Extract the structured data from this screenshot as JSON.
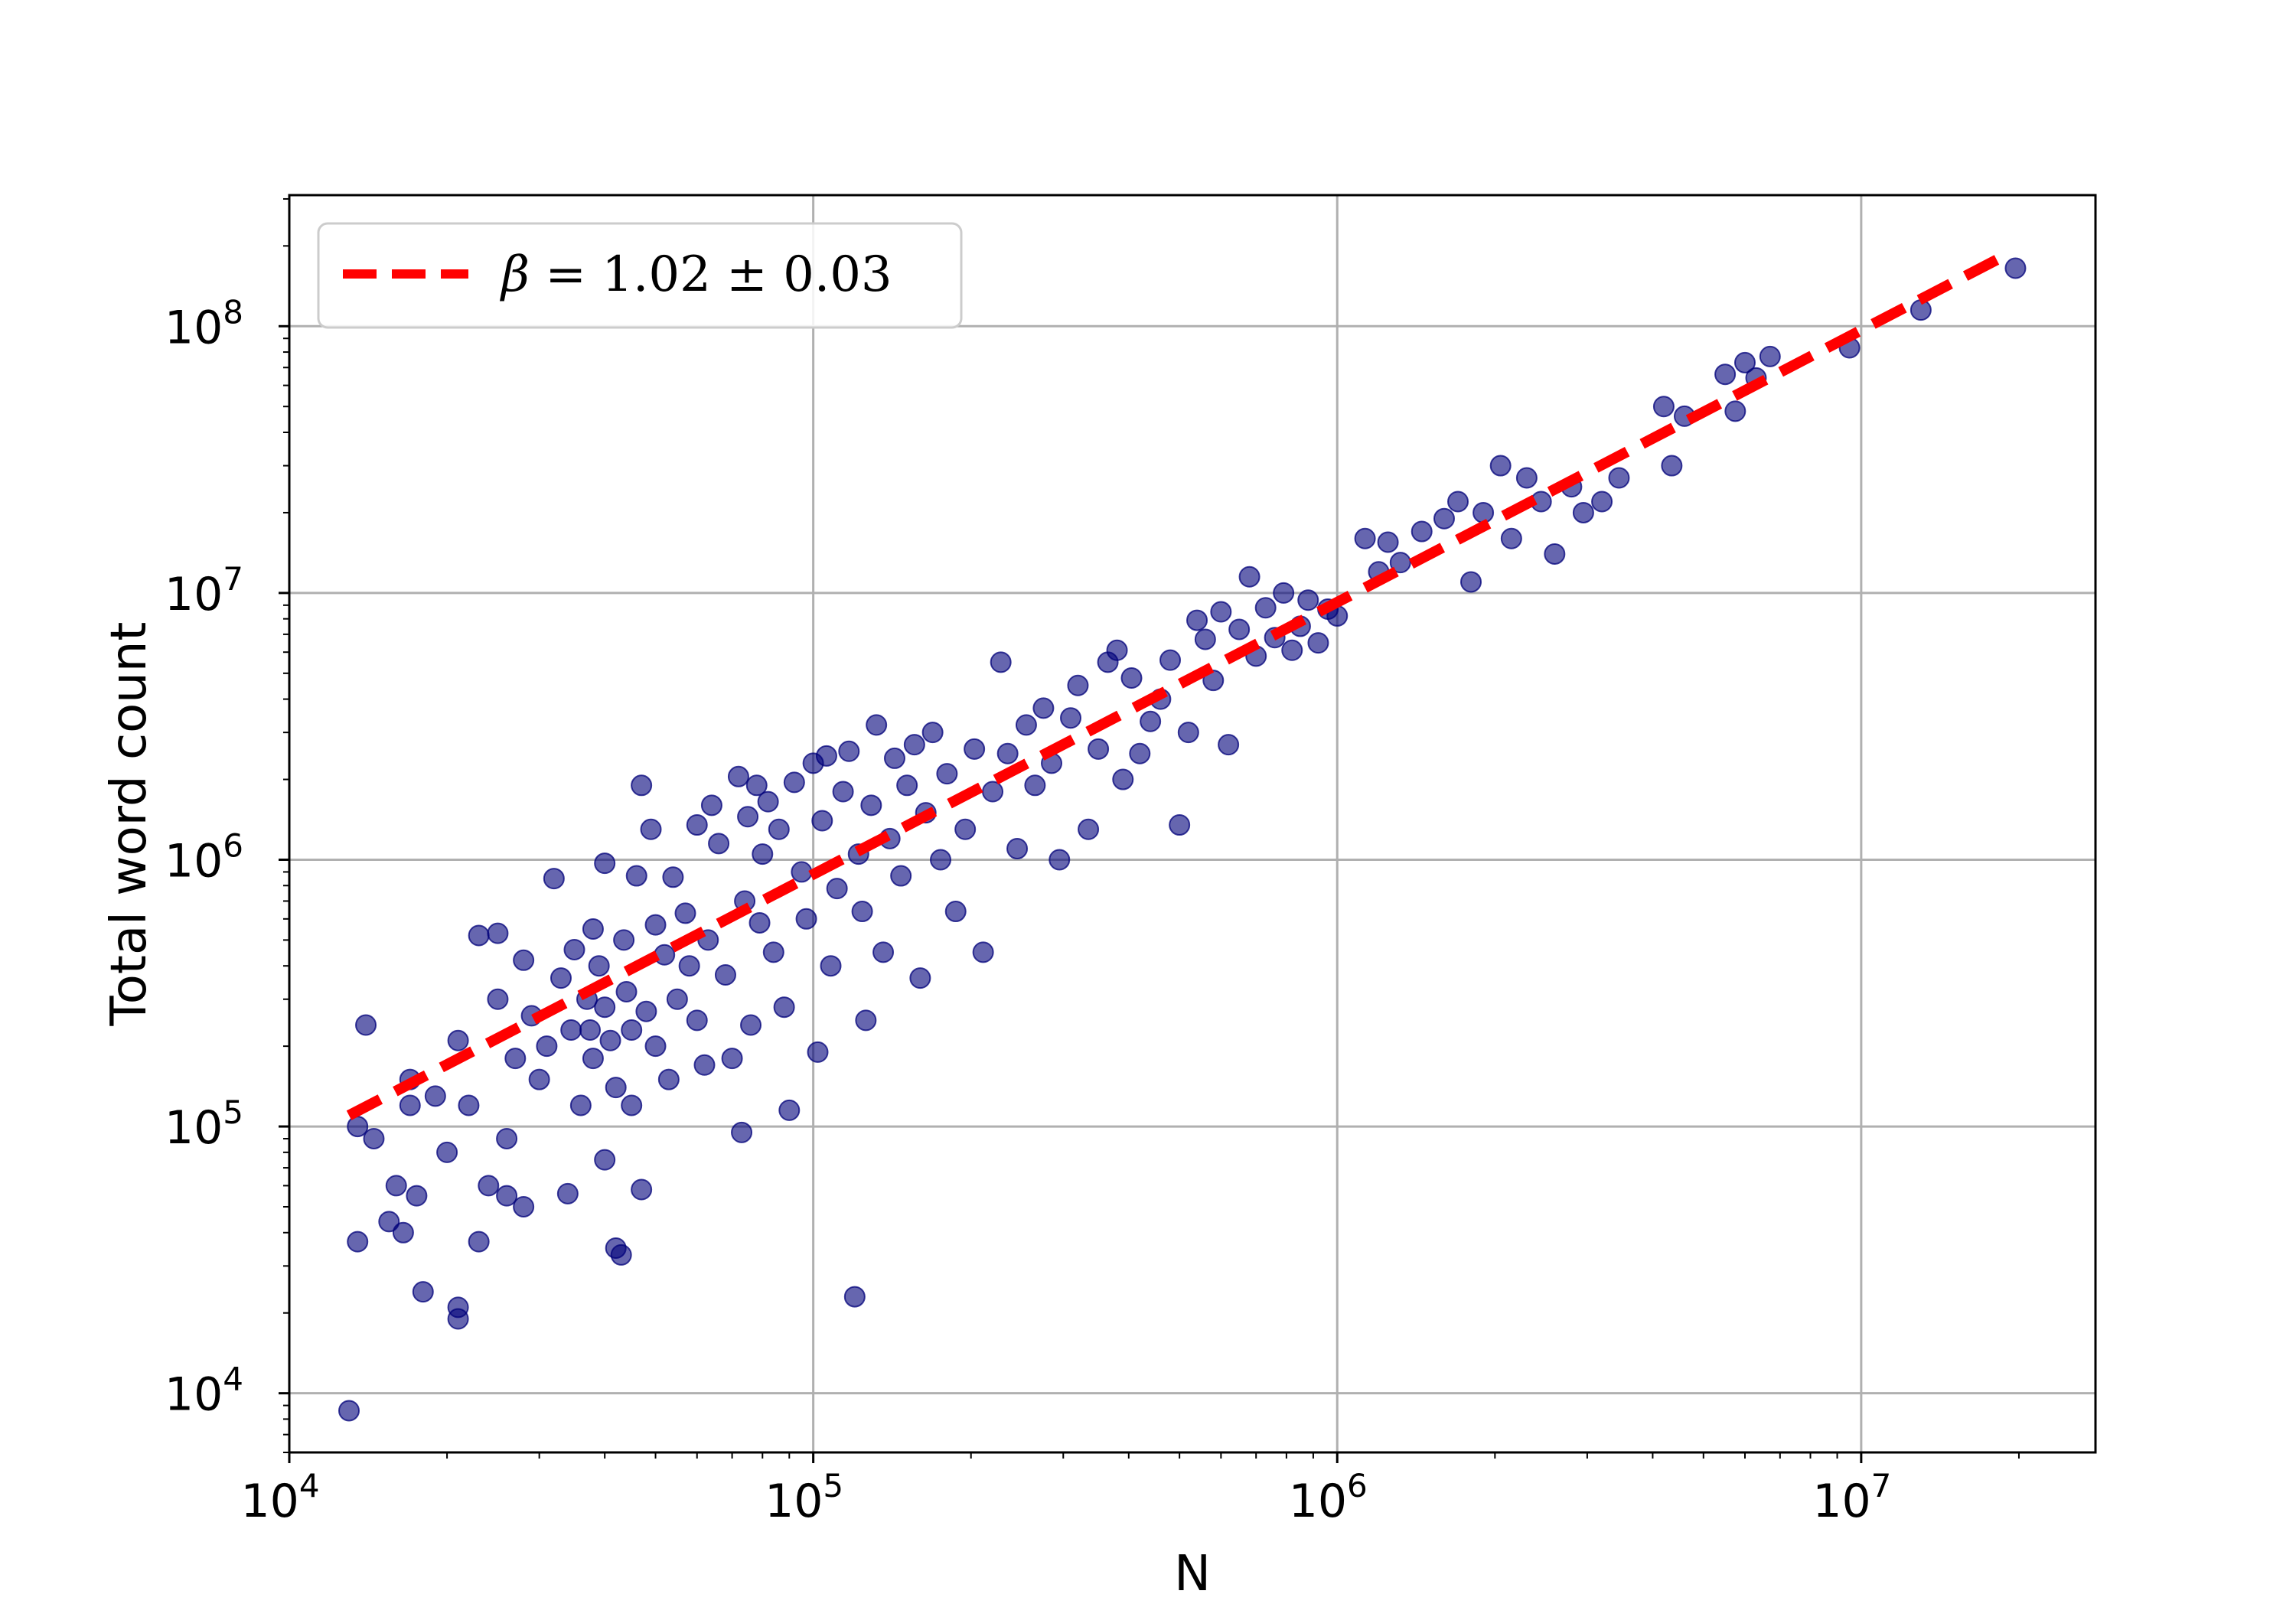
{
  "chart_data": {
    "type": "scatter",
    "title": "",
    "xlabel": "N",
    "ylabel": "Total word count",
    "x_scale": "log",
    "y_scale": "log",
    "xlim": [
      10000,
      28000000
    ],
    "ylim": [
      6000,
      310000000
    ],
    "grid": true,
    "legend_position": "top-left",
    "x_ticks": [
      {
        "base": "10",
        "exp": "4"
      },
      {
        "base": "10",
        "exp": "5"
      },
      {
        "base": "10",
        "exp": "6"
      },
      {
        "base": "10",
        "exp": "7"
      }
    ],
    "y_ticks": [
      {
        "base": "10",
        "exp": "4"
      },
      {
        "base": "10",
        "exp": "5"
      },
      {
        "base": "10",
        "exp": "6"
      },
      {
        "base": "10",
        "exp": "7"
      },
      {
        "base": "10",
        "exp": "8"
      }
    ],
    "fit": {
      "legend_symbol": "β",
      "legend_value": " = 1.02 ± 0.03",
      "beta": 1.02,
      "x_range": [
        13000,
        19000000
      ],
      "anchor": [
        13000,
        110000
      ],
      "color": "#ff0000",
      "style": "dashed"
    },
    "scatter_color": "#00007a",
    "points": [
      [
        13000,
        8600
      ],
      [
        13500,
        37000
      ],
      [
        13500,
        100000
      ],
      [
        14000,
        240000
      ],
      [
        14500,
        90000
      ],
      [
        15500,
        44000
      ],
      [
        16000,
        60000
      ],
      [
        16500,
        40000
      ],
      [
        17000,
        150000
      ],
      [
        17000,
        120000
      ],
      [
        17500,
        55000
      ],
      [
        18000,
        24000
      ],
      [
        19000,
        130000
      ],
      [
        20000,
        80000
      ],
      [
        21000,
        19000
      ],
      [
        21000,
        21000
      ],
      [
        21000,
        210000
      ],
      [
        22000,
        120000
      ],
      [
        23000,
        37000
      ],
      [
        23000,
        520000
      ],
      [
        24000,
        60000
      ],
      [
        25000,
        300000
      ],
      [
        25000,
        530000
      ],
      [
        26000,
        55000
      ],
      [
        26000,
        90000
      ],
      [
        27000,
        180000
      ],
      [
        28000,
        420000
      ],
      [
        28000,
        50000
      ],
      [
        29000,
        260000
      ],
      [
        30000,
        150000
      ],
      [
        31000,
        200000
      ],
      [
        32000,
        850000
      ],
      [
        33000,
        360000
      ],
      [
        34000,
        56000
      ],
      [
        34500,
        230000
      ],
      [
        35000,
        460000
      ],
      [
        36000,
        120000
      ],
      [
        37000,
        300000
      ],
      [
        37500,
        230000
      ],
      [
        38000,
        180000
      ],
      [
        38000,
        550000
      ],
      [
        39000,
        400000
      ],
      [
        40000,
        75000
      ],
      [
        40000,
        970000
      ],
      [
        40000,
        280000
      ],
      [
        41000,
        210000
      ],
      [
        42000,
        140000
      ],
      [
        42000,
        35000
      ],
      [
        43000,
        33000
      ],
      [
        43500,
        500000
      ],
      [
        44000,
        320000
      ],
      [
        45000,
        230000
      ],
      [
        45000,
        120000
      ],
      [
        46000,
        870000
      ],
      [
        47000,
        1900000
      ],
      [
        47000,
        58000
      ],
      [
        48000,
        270000
      ],
      [
        49000,
        1300000
      ],
      [
        50000,
        200000
      ],
      [
        50000,
        570000
      ],
      [
        52000,
        440000
      ],
      [
        53000,
        150000
      ],
      [
        54000,
        860000
      ],
      [
        55000,
        300000
      ],
      [
        57000,
        630000
      ],
      [
        58000,
        400000
      ],
      [
        60000,
        1350000
      ],
      [
        60000,
        250000
      ],
      [
        62000,
        170000
      ],
      [
        63000,
        500000
      ],
      [
        64000,
        1600000
      ],
      [
        66000,
        1150000
      ],
      [
        68000,
        370000
      ],
      [
        70000,
        180000
      ],
      [
        72000,
        2050000
      ],
      [
        73000,
        95000
      ],
      [
        74000,
        700000
      ],
      [
        75000,
        1450000
      ],
      [
        76000,
        240000
      ],
      [
        78000,
        1900000
      ],
      [
        79000,
        580000
      ],
      [
        80000,
        1050000
      ],
      [
        82000,
        1650000
      ],
      [
        84000,
        450000
      ],
      [
        86000,
        1300000
      ],
      [
        88000,
        280000
      ],
      [
        90000,
        115000
      ],
      [
        92000,
        1950000
      ],
      [
        95000,
        900000
      ],
      [
        97000,
        600000
      ],
      [
        100000,
        2300000
      ],
      [
        102000,
        190000
      ],
      [
        104000,
        1400000
      ],
      [
        106000,
        2450000
      ],
      [
        108000,
        400000
      ],
      [
        111000,
        780000
      ],
      [
        114000,
        1800000
      ],
      [
        117000,
        2550000
      ],
      [
        120000,
        23000
      ],
      [
        122000,
        1050000
      ],
      [
        124000,
        640000
      ],
      [
        126000,
        250000
      ],
      [
        129000,
        1600000
      ],
      [
        132000,
        3200000
      ],
      [
        136000,
        450000
      ],
      [
        140000,
        1200000
      ],
      [
        143000,
        2400000
      ],
      [
        147000,
        870000
      ],
      [
        151000,
        1900000
      ],
      [
        156000,
        2700000
      ],
      [
        160000,
        360000
      ],
      [
        164000,
        1500000
      ],
      [
        169000,
        3000000
      ],
      [
        175000,
        1000000
      ],
      [
        180000,
        2100000
      ],
      [
        187000,
        640000
      ],
      [
        195000,
        1300000
      ],
      [
        203000,
        2600000
      ],
      [
        211000,
        450000
      ],
      [
        220000,
        1800000
      ],
      [
        228000,
        5500000
      ],
      [
        235000,
        2500000
      ],
      [
        245000,
        1100000
      ],
      [
        255000,
        3200000
      ],
      [
        265000,
        1900000
      ],
      [
        275000,
        3700000
      ],
      [
        285000,
        2300000
      ],
      [
        295000,
        1000000
      ],
      [
        310000,
        3400000
      ],
      [
        320000,
        4500000
      ],
      [
        335000,
        1300000
      ],
      [
        350000,
        2600000
      ],
      [
        365000,
        5500000
      ],
      [
        380000,
        6100000
      ],
      [
        390000,
        2000000
      ],
      [
        405000,
        4800000
      ],
      [
        420000,
        2500000
      ],
      [
        440000,
        3300000
      ],
      [
        460000,
        4000000
      ],
      [
        480000,
        5600000
      ],
      [
        500000,
        1350000
      ],
      [
        520000,
        3000000
      ],
      [
        540000,
        7900000
      ],
      [
        560000,
        6700000
      ],
      [
        580000,
        4700000
      ],
      [
        600000,
        8500000
      ],
      [
        620000,
        2700000
      ],
      [
        650000,
        7300000
      ],
      [
        680000,
        11500000
      ],
      [
        700000,
        5800000
      ],
      [
        730000,
        8800000
      ],
      [
        760000,
        6800000
      ],
      [
        790000,
        10000000
      ],
      [
        820000,
        6100000
      ],
      [
        850000,
        7500000
      ],
      [
        880000,
        9400000
      ],
      [
        920000,
        6500000
      ],
      [
        960000,
        8700000
      ],
      [
        1000000,
        8200000
      ],
      [
        1130000,
        16000000
      ],
      [
        1200000,
        12000000
      ],
      [
        1250000,
        15500000
      ],
      [
        1320000,
        13000000
      ],
      [
        1450000,
        17000000
      ],
      [
        1600000,
        19000000
      ],
      [
        1700000,
        22000000
      ],
      [
        1800000,
        11000000
      ],
      [
        1900000,
        20000000
      ],
      [
        2050000,
        30000000
      ],
      [
        2150000,
        16000000
      ],
      [
        2300000,
        27000000
      ],
      [
        2450000,
        22000000
      ],
      [
        2600000,
        14000000
      ],
      [
        2800000,
        25000000
      ],
      [
        2950000,
        20000000
      ],
      [
        3200000,
        22000000
      ],
      [
        3450000,
        27000000
      ],
      [
        4200000,
        50000000
      ],
      [
        4350000,
        30000000
      ],
      [
        4600000,
        46000000
      ],
      [
        5500000,
        66000000
      ],
      [
        5750000,
        48000000
      ],
      [
        6000000,
        73000000
      ],
      [
        6300000,
        64000000
      ],
      [
        6700000,
        77000000
      ],
      [
        9500000,
        83000000
      ],
      [
        13000000,
        115000000
      ],
      [
        19700000,
        165000000
      ]
    ]
  }
}
